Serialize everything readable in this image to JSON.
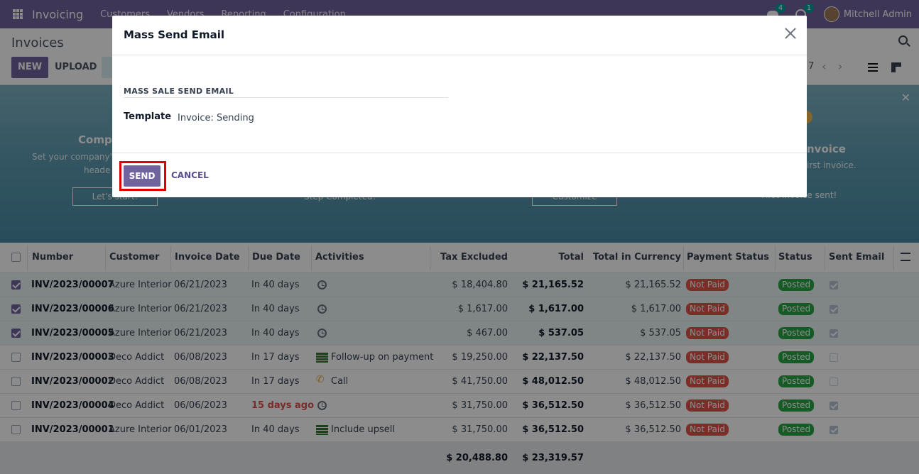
{
  "navbar": {
    "app_name": "Invoicing",
    "menu": [
      "Customers",
      "Vendors",
      "Reporting",
      "Configuration"
    ],
    "chat_count": "4",
    "activity_count": "1",
    "user_name": "Mitchell Admin"
  },
  "control_panel": {
    "breadcrumb": "Invoices",
    "new_label": "NEW",
    "upload_label": "UPLOAD",
    "pager_value": "7"
  },
  "banner": {
    "step1_title": "Compa",
    "step1_desc1": "Set your company's",
    "step1_desc2": "heade",
    "step1_button": "Let's start!",
    "step2_done": "Step Completed!",
    "step3_button": "Customize",
    "step4_title": "nvoice",
    "step4_desc": "irst invoice.",
    "step4_done": "First invoice sent!"
  },
  "table": {
    "headers": {
      "number": "Number",
      "customer": "Customer",
      "invoice_date": "Invoice Date",
      "due_date": "Due Date",
      "activities": "Activities",
      "tax_excluded": "Tax Excluded",
      "total": "Total",
      "total_currency": "Total in Currency",
      "payment_status": "Payment Status",
      "status": "Status",
      "sent_email": "Sent Email"
    },
    "rows": [
      {
        "number": "INV/2023/00007",
        "customer": "Azure Interior",
        "invoice_date": "06/21/2023",
        "due_date": "In 40 days",
        "activity": "",
        "tax_excluded": "$ 18,404.80",
        "total": "$ 21,165.52",
        "total_currency": "$ 21,165.52",
        "payment_status": "Not Paid",
        "status": "Posted"
      },
      {
        "number": "INV/2023/00006",
        "customer": "Azure Interior",
        "invoice_date": "06/21/2023",
        "due_date": "In 40 days",
        "activity": "",
        "tax_excluded": "$ 1,617.00",
        "total": "$ 1,617.00",
        "total_currency": "$ 1,617.00",
        "payment_status": "Not Paid",
        "status": "Posted"
      },
      {
        "number": "INV/2023/00005",
        "customer": "Azure Interior",
        "invoice_date": "06/21/2023",
        "due_date": "In 40 days",
        "activity": "",
        "tax_excluded": "$ 467.00",
        "total": "$ 537.05",
        "total_currency": "$ 537.05",
        "payment_status": "Not Paid",
        "status": "Posted"
      },
      {
        "number": "INV/2023/00003",
        "customer": "Deco Addict",
        "invoice_date": "06/08/2023",
        "due_date": "In 17 days",
        "activity": "Follow-up on payment",
        "tax_excluded": "$ 19,250.00",
        "total": "$ 22,137.50",
        "total_currency": "$ 22,137.50",
        "payment_status": "Not Paid",
        "status": "Posted"
      },
      {
        "number": "INV/2023/00002",
        "customer": "Deco Addict",
        "invoice_date": "06/08/2023",
        "due_date": "In 17 days",
        "activity": "Call",
        "tax_excluded": "$ 41,750.00",
        "total": "$ 48,012.50",
        "total_currency": "$ 48,012.50",
        "payment_status": "Not Paid",
        "status": "Posted"
      },
      {
        "number": "INV/2023/00004",
        "customer": "Deco Addict",
        "invoice_date": "06/06/2023",
        "due_date": "15 days ago",
        "activity": "",
        "tax_excluded": "$ 31,750.00",
        "total": "$ 36,512.50",
        "total_currency": "$ 36,512.50",
        "payment_status": "Not Paid",
        "status": "Posted"
      },
      {
        "number": "INV/2023/00001",
        "customer": "Azure Interior",
        "invoice_date": "06/01/2023",
        "due_date": "In 40 days",
        "activity": "Include upsell",
        "tax_excluded": "$ 31,750.00",
        "total": "$ 36,512.50",
        "total_currency": "$ 36,512.50",
        "payment_status": "Not Paid",
        "status": "Posted"
      }
    ],
    "footer": {
      "tax_excluded_sum": "$ 20,488.80",
      "total_sum": "$ 23,319.57"
    }
  },
  "modal": {
    "title": "Mass Send Email",
    "section_title": "MASS SALE SEND EMAIL",
    "template_label": "Template",
    "template_value": "Invoice: Sending",
    "send_label": "SEND",
    "cancel_label": "CANCEL"
  },
  "colors": {
    "brand": "#71639e",
    "not_paid": "#e0544a",
    "posted": "#28a745",
    "highlight": "#e00000"
  }
}
